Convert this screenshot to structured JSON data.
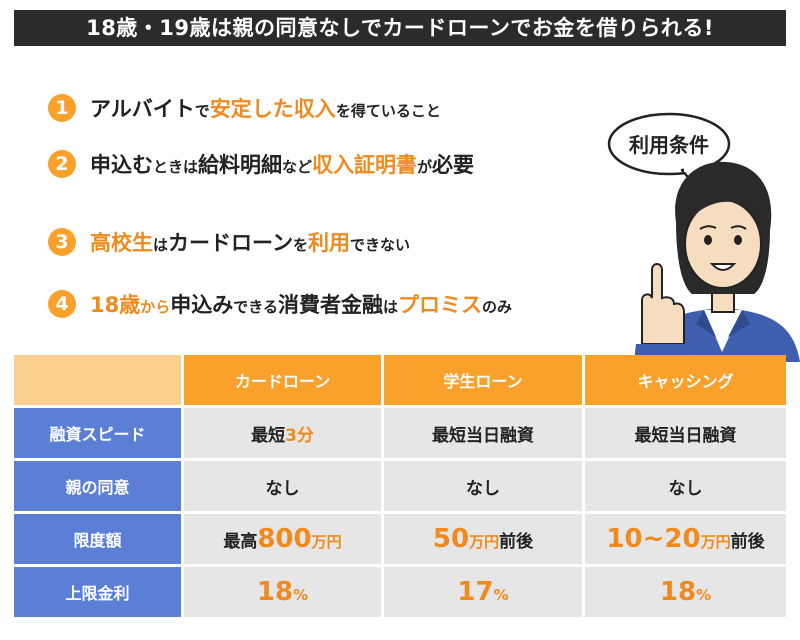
{
  "banner": {
    "title": "18歳・19歳は親の同意なしでカードローンでお金を借りられる!"
  },
  "conditions": [
    {
      "num": "1",
      "segments": [
        {
          "text": "アルバイト",
          "style": "big bk"
        },
        {
          "text": "で",
          "style": "small bk"
        },
        {
          "text": "安定した収入",
          "style": "big hl"
        },
        {
          "text": "を得ていること",
          "style": "small bk"
        }
      ]
    },
    {
      "num": "2",
      "segments": [
        {
          "text": "申込む",
          "style": "big bk"
        },
        {
          "text": "ときは",
          "style": "small bk"
        },
        {
          "text": "給料明細",
          "style": "big bk"
        },
        {
          "text": "など",
          "style": "small bk"
        },
        {
          "text": "収入証明書",
          "style": "big hl"
        },
        {
          "text": "が",
          "style": "small bk"
        },
        {
          "text": "必要",
          "style": "big bk"
        }
      ]
    },
    {
      "num": "3",
      "segments": [
        {
          "text": "高校生",
          "style": "big hl"
        },
        {
          "text": "は",
          "style": "small bk"
        },
        {
          "text": "カードローン",
          "style": "big bk"
        },
        {
          "text": "を",
          "style": "small bk"
        },
        {
          "text": "利用",
          "style": "big hl"
        },
        {
          "text": "できない",
          "style": "small bk"
        }
      ]
    },
    {
      "num": "4",
      "segments": [
        {
          "text": "18歳",
          "style": "big hl"
        },
        {
          "text": "から",
          "style": "small hl"
        },
        {
          "text": "申込み",
          "style": "big bk"
        },
        {
          "text": "できる",
          "style": "small bk"
        },
        {
          "text": "消費者金融",
          "style": "big bk"
        },
        {
          "text": "は",
          "style": "small bk"
        },
        {
          "text": "プロミス",
          "style": "big hl"
        },
        {
          "text": "のみ",
          "style": "small bk"
        }
      ]
    }
  ],
  "bubble": {
    "label": "利用条件"
  },
  "table": {
    "corner": "",
    "columns": [
      "カードローン",
      "学生ローン",
      "キャッシング"
    ],
    "rows": [
      {
        "label": "融資スピード",
        "cells": [
          [
            {
              "text": "最短",
              "style": ""
            },
            {
              "text": "3分",
              "style": "o"
            }
          ],
          [
            {
              "text": "最短当日融資",
              "style": ""
            }
          ],
          [
            {
              "text": "最短当日融資",
              "style": ""
            }
          ]
        ]
      },
      {
        "label": "親の同意",
        "cells": [
          [
            {
              "text": "なし",
              "style": ""
            }
          ],
          [
            {
              "text": "なし",
              "style": ""
            }
          ],
          [
            {
              "text": "なし",
              "style": ""
            }
          ]
        ]
      },
      {
        "label": "限度額",
        "cells": [
          [
            {
              "text": "最高",
              "style": ""
            },
            {
              "text": "800",
              "style": "obig"
            },
            {
              "text": "万円",
              "style": "osmall"
            }
          ],
          [
            {
              "text": "50",
              "style": "obig"
            },
            {
              "text": "万円",
              "style": "osmall"
            },
            {
              "text": "前後",
              "style": ""
            }
          ],
          [
            {
              "text": "10~20",
              "style": "obig"
            },
            {
              "text": "万円",
              "style": "osmall"
            },
            {
              "text": "前後",
              "style": ""
            }
          ]
        ]
      },
      {
        "label": "上限金利",
        "cells": [
          [
            {
              "text": "18",
              "style": "obig"
            },
            {
              "text": "%",
              "style": "osmall"
            }
          ],
          [
            {
              "text": "17",
              "style": "obig"
            },
            {
              "text": "%",
              "style": "osmall"
            }
          ],
          [
            {
              "text": "18",
              "style": "obig"
            },
            {
              "text": "%",
              "style": "osmall"
            }
          ]
        ]
      }
    ]
  },
  "colors": {
    "accent": "#f9a12b",
    "highlight_text": "#f08a1c",
    "row_header": "#5b7fd4",
    "cell_bg": "#e6e6e6",
    "banner_bg": "#2b2b2b"
  }
}
